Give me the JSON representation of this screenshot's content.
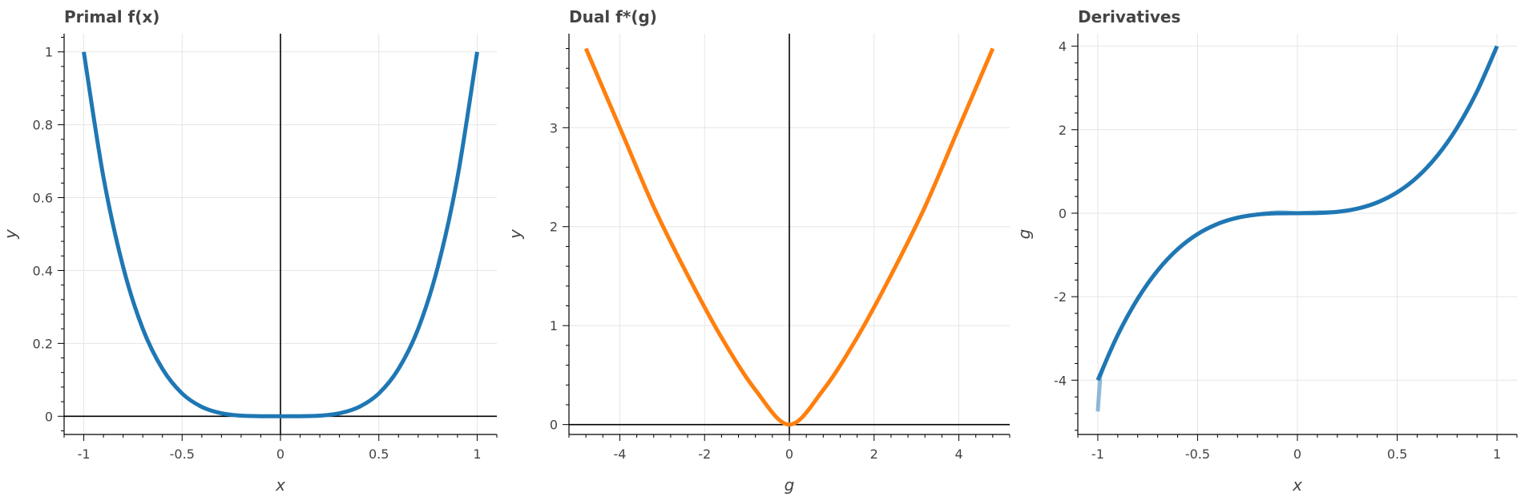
{
  "chart_data": [
    {
      "type": "line",
      "title": "Primal f(x)",
      "xlabel": "x",
      "ylabel": "y",
      "xlim": [
        -1.1,
        1.1
      ],
      "ylim": [
        -0.05,
        1.05
      ],
      "xticks": [
        -1,
        -0.5,
        0,
        0.5,
        1
      ],
      "xtick_labels": [
        "-1",
        "-0.5",
        "0",
        "0.5",
        "1"
      ],
      "yticks": [
        0,
        0.2,
        0.4,
        0.6,
        0.8,
        1
      ],
      "ytick_labels": [
        "0",
        "0.2",
        "0.4",
        "0.6",
        "0.8",
        "1"
      ],
      "zero_lines": true,
      "grid": true,
      "series": [
        {
          "color": "#1f77b4",
          "x": [
            -1,
            -0.9,
            -0.8,
            -0.7,
            -0.6,
            -0.5,
            -0.4,
            -0.3,
            -0.2,
            -0.1,
            0,
            0.1,
            0.2,
            0.3,
            0.4,
            0.5,
            0.6,
            0.7,
            0.8,
            0.9,
            1
          ],
          "y": [
            1,
            0.656,
            0.41,
            0.24,
            0.13,
            0.0625,
            0.0256,
            0.0081,
            0.0016,
            0.0001,
            0,
            0.0001,
            0.0016,
            0.0081,
            0.0256,
            0.0625,
            0.13,
            0.24,
            0.41,
            0.656,
            1
          ]
        }
      ]
    },
    {
      "type": "line",
      "title": "Dual f*(g)",
      "xlabel": "g",
      "ylabel": "y",
      "xlim": [
        -5.2,
        5.2
      ],
      "ylim": [
        -0.1,
        3.95
      ],
      "xticks": [
        -4,
        -2,
        0,
        2,
        4
      ],
      "xtick_labels": [
        "-4",
        "-2",
        "0",
        "2",
        "4"
      ],
      "yticks": [
        0,
        1,
        2,
        3
      ],
      "ytick_labels": [
        "0",
        "1",
        "2",
        "3"
      ],
      "zero_lines": true,
      "grid": true,
      "series": [
        {
          "color": "#ff7f0e",
          "x": [
            -4.8,
            -4.0,
            -3.2,
            -2.4,
            -1.6,
            -0.8,
            0,
            0.8,
            1.6,
            2.4,
            3.2,
            4.0,
            4.8
          ],
          "y": [
            3.8,
            3.0,
            2.2,
            1.51,
            0.88,
            0.35,
            0,
            0.35,
            0.88,
            1.51,
            2.2,
            3.0,
            3.8
          ]
        }
      ]
    },
    {
      "type": "line",
      "title": "Derivatives",
      "xlabel": "x",
      "ylabel": "g",
      "xlim": [
        -1.1,
        1.1
      ],
      "ylim": [
        -5.3,
        4.3
      ],
      "xticks": [
        -1,
        -0.5,
        0,
        0.5,
        1
      ],
      "xtick_labels": [
        "-1",
        "-0.5",
        "0",
        "0.5",
        "1"
      ],
      "yticks": [
        -4,
        -2,
        0,
        2,
        4
      ],
      "ytick_labels": [
        "-4",
        "-2",
        "0",
        "2",
        "4"
      ],
      "zero_lines": false,
      "grid": true,
      "series": [
        {
          "color": "#1f77b4",
          "opacity": 0.5,
          "x": [
            -1,
            -0.99,
            -0.98,
            -0.9,
            -0.8,
            -0.7,
            -0.6,
            -0.5,
            -0.4,
            -0.3,
            -0.2,
            -0.1,
            0,
            0.1,
            0.2,
            0.3,
            0.4,
            0.5,
            0.6,
            0.7,
            0.8,
            0.9,
            1
          ],
          "y": [
            -4.75,
            -4.1,
            -3.8,
            -2.92,
            -2.05,
            -1.37,
            -0.86,
            -0.5,
            -0.26,
            -0.11,
            -0.03,
            0.02,
            0.0,
            0.02,
            0.03,
            0.11,
            0.26,
            0.5,
            0.86,
            1.37,
            2.05,
            2.92,
            4.0
          ]
        },
        {
          "color": "#1f77b4",
          "opacity": 1,
          "x": [
            -1,
            -0.9,
            -0.8,
            -0.7,
            -0.6,
            -0.5,
            -0.4,
            -0.3,
            -0.2,
            -0.1,
            0,
            0.1,
            0.2,
            0.3,
            0.4,
            0.5,
            0.6,
            0.7,
            0.8,
            0.9,
            1
          ],
          "y": [
            -4,
            -2.916,
            -2.048,
            -1.372,
            -0.864,
            -0.5,
            -0.256,
            -0.108,
            -0.032,
            -0.004,
            0,
            0.004,
            0.032,
            0.108,
            0.256,
            0.5,
            0.864,
            1.372,
            2.048,
            2.916,
            4
          ]
        }
      ]
    }
  ]
}
